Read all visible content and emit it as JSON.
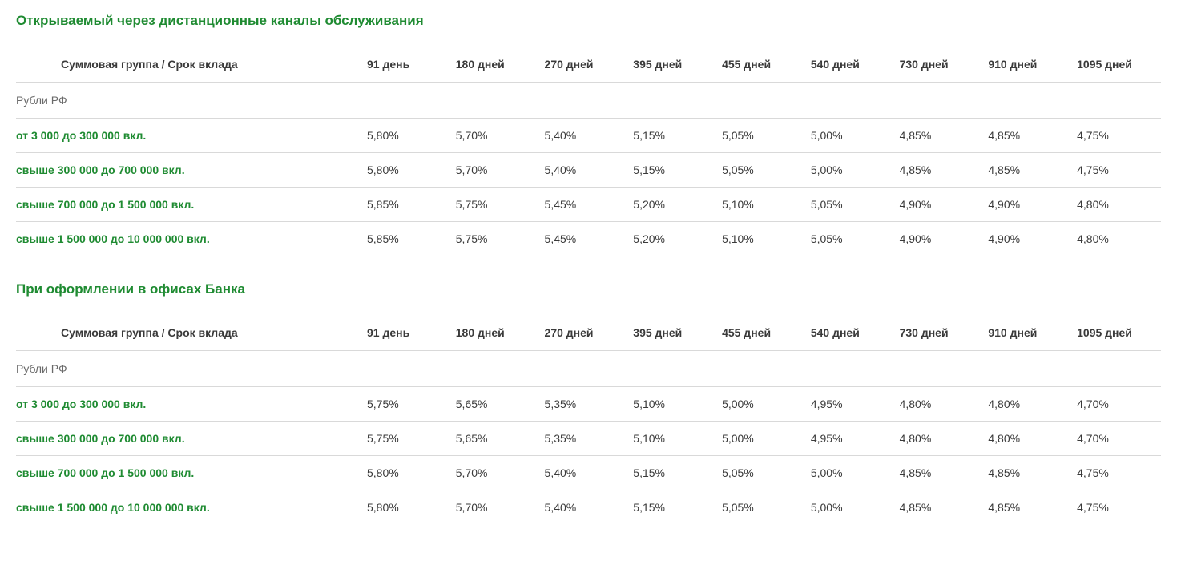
{
  "colors": {
    "accent": "#1f8b32",
    "text": "#3a3a3a",
    "muted": "#6a6a6a",
    "border": "#d9d9d9",
    "background": "#ffffff"
  },
  "header_label": "Суммовая группа / Срок вклада",
  "columns": [
    "91 день",
    "180 дней",
    "270 дней",
    "395 дней",
    "455 дней",
    "540 дней",
    "730 дней",
    "910 дней",
    "1095 дней"
  ],
  "sections": [
    {
      "title": "Открываемый через дистанционные каналы обслуживания",
      "subhead": "Рубли РФ",
      "rows": [
        {
          "label": "от 3 000 до 300 000 вкл.",
          "values": [
            "5,80%",
            "5,70%",
            "5,40%",
            "5,15%",
            "5,05%",
            "5,00%",
            "4,85%",
            "4,85%",
            "4,75%"
          ]
        },
        {
          "label": "свыше 300 000 до 700 000 вкл.",
          "values": [
            "5,80%",
            "5,70%",
            "5,40%",
            "5,15%",
            "5,05%",
            "5,00%",
            "4,85%",
            "4,85%",
            "4,75%"
          ]
        },
        {
          "label": "свыше 700 000 до 1 500 000 вкл.",
          "values": [
            "5,85%",
            "5,75%",
            "5,45%",
            "5,20%",
            "5,10%",
            "5,05%",
            "4,90%",
            "4,90%",
            "4,80%"
          ]
        },
        {
          "label": "свыше 1 500 000 до 10 000 000 вкл.",
          "values": [
            "5,85%",
            "5,75%",
            "5,45%",
            "5,20%",
            "5,10%",
            "5,05%",
            "4,90%",
            "4,90%",
            "4,80%"
          ]
        }
      ]
    },
    {
      "title": "При оформлении в офисах Банка",
      "subhead": "Рубли РФ",
      "rows": [
        {
          "label": "от 3 000 до 300 000 вкл.",
          "values": [
            "5,75%",
            "5,65%",
            "5,35%",
            "5,10%",
            "5,00%",
            "4,95%",
            "4,80%",
            "4,80%",
            "4,70%"
          ]
        },
        {
          "label": "свыше 300 000 до 700 000 вкл.",
          "values": [
            "5,75%",
            "5,65%",
            "5,35%",
            "5,10%",
            "5,00%",
            "4,95%",
            "4,80%",
            "4,80%",
            "4,70%"
          ]
        },
        {
          "label": "свыше 700 000 до 1 500 000 вкл.",
          "values": [
            "5,80%",
            "5,70%",
            "5,40%",
            "5,15%",
            "5,05%",
            "5,00%",
            "4,85%",
            "4,85%",
            "4,75%"
          ]
        },
        {
          "label": "свыше 1 500 000 до 10 000 000 вкл.",
          "values": [
            "5,80%",
            "5,70%",
            "5,40%",
            "5,15%",
            "5,05%",
            "5,00%",
            "4,85%",
            "4,85%",
            "4,75%"
          ]
        }
      ]
    }
  ]
}
